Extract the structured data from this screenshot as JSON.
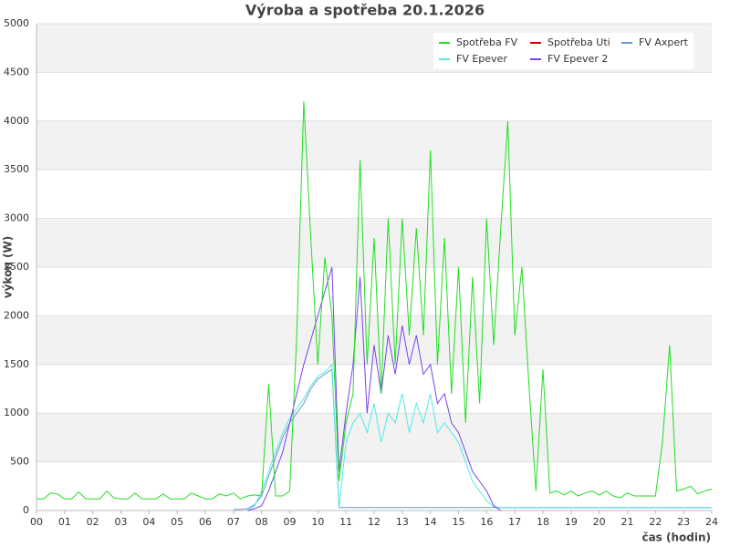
{
  "chart_data": {
    "type": "line",
    "title": "Výroba a spotřeba 20.1.2026",
    "x_label": "čas (hodin)",
    "y_label": "výkon (W)",
    "x": [
      0,
      0.25,
      0.5,
      0.75,
      1,
      1.25,
      1.5,
      1.75,
      2,
      2.25,
      2.5,
      2.75,
      3,
      3.25,
      3.5,
      3.75,
      4,
      4.25,
      4.5,
      4.75,
      5,
      5.25,
      5.5,
      5.75,
      6,
      6.25,
      6.5,
      6.75,
      7,
      7.25,
      7.5,
      7.75,
      8,
      8.25,
      8.5,
      8.75,
      9,
      9.25,
      9.5,
      9.75,
      10,
      10.25,
      10.5,
      10.75,
      11,
      11.25,
      11.5,
      11.75,
      12,
      12.25,
      12.5,
      12.75,
      13,
      13.25,
      13.5,
      13.75,
      14,
      14.25,
      14.5,
      14.75,
      15,
      15.25,
      15.5,
      15.75,
      16,
      16.25,
      16.5,
      16.75,
      17,
      17.25,
      17.5,
      17.75,
      18,
      18.25,
      18.5,
      18.75,
      19,
      19.25,
      19.5,
      19.75,
      20,
      20.25,
      20.5,
      20.75,
      21,
      21.25,
      21.5,
      21.75,
      22,
      22.25,
      22.5,
      22.75,
      23,
      23.25,
      23.5,
      23.75,
      24
    ],
    "series": [
      {
        "name": "Spotřeba FV",
        "color": "#22dd22",
        "values": [
          120,
          120,
          180,
          170,
          120,
          120,
          190,
          120,
          120,
          120,
          200,
          130,
          120,
          120,
          180,
          120,
          120,
          120,
          170,
          120,
          120,
          120,
          180,
          150,
          120,
          120,
          170,
          150,
          180,
          120,
          150,
          160,
          150,
          1300,
          150,
          150,
          200,
          1800,
          4200,
          2800,
          1500,
          2600,
          2000,
          300,
          900,
          1200,
          3600,
          1500,
          2800,
          1200,
          3000,
          1500,
          3000,
          1800,
          2900,
          1800,
          3700,
          1500,
          2800,
          1200,
          2500,
          900,
          2400,
          1100,
          3000,
          1700,
          2900,
          4000,
          1800,
          2500,
          1300,
          200,
          1450,
          180,
          200,
          160,
          200,
          150,
          180,
          200,
          160,
          200,
          150,
          130,
          180,
          150,
          150,
          150,
          150,
          700,
          1700,
          200,
          220,
          250,
          170,
          200,
          220
        ]
      },
      {
        "name": "Spotřeba Uti",
        "color": "#cc0000",
        "values": [
          null,
          null,
          null,
          null,
          null,
          null,
          null,
          null,
          null,
          null,
          null,
          null,
          null,
          null,
          null,
          null,
          null,
          null,
          null,
          null,
          null,
          null,
          null,
          null,
          null,
          null,
          null,
          null,
          null,
          null,
          null,
          null,
          null,
          null,
          null,
          null,
          null,
          null,
          null,
          null,
          null,
          null,
          null,
          null,
          null,
          null,
          null,
          null,
          null,
          null,
          null,
          null,
          null,
          null,
          null,
          null,
          null,
          null,
          null,
          null,
          null,
          null,
          null,
          null,
          null,
          null,
          null,
          null,
          null,
          null,
          null,
          null,
          null,
          null,
          null,
          null,
          null,
          null,
          null,
          null,
          null,
          null,
          null,
          null,
          null,
          null,
          null,
          null,
          null,
          null,
          null,
          null,
          null,
          null,
          null,
          null,
          null
        ]
      },
      {
        "name": "FV Axpert",
        "color": "#6699cc",
        "values": [
          null,
          null,
          null,
          null,
          null,
          null,
          null,
          null,
          null,
          null,
          null,
          null,
          null,
          null,
          null,
          null,
          null,
          null,
          null,
          null,
          null,
          null,
          null,
          null,
          null,
          null,
          null,
          null,
          10,
          10,
          20,
          60,
          150,
          350,
          550,
          750,
          900,
          1000,
          1100,
          1250,
          1350,
          1400,
          1450,
          30,
          30,
          30,
          30,
          30,
          30,
          30,
          30,
          30,
          30,
          30,
          30,
          30,
          30,
          30,
          30,
          30,
          30,
          30,
          30,
          30,
          30,
          30,
          30,
          30,
          30,
          30,
          30,
          30,
          30,
          30,
          30,
          30,
          30,
          30,
          30,
          30,
          30,
          30,
          30,
          30,
          30,
          30,
          30,
          30,
          30,
          30,
          30,
          30,
          30,
          30,
          30,
          30,
          30
        ]
      },
      {
        "name": "FV Epever",
        "color": "#55e8e8",
        "values": [
          null,
          null,
          null,
          null,
          null,
          null,
          null,
          null,
          null,
          null,
          null,
          null,
          null,
          null,
          null,
          null,
          null,
          null,
          null,
          null,
          null,
          null,
          null,
          null,
          null,
          null,
          null,
          null,
          null,
          null,
          0,
          50,
          200,
          400,
          600,
          800,
          950,
          1050,
          1150,
          1280,
          1380,
          1420,
          1500,
          30,
          700,
          900,
          1000,
          800,
          1100,
          700,
          1000,
          900,
          1200,
          800,
          1100,
          900,
          1200,
          800,
          900,
          800,
          700,
          500,
          300,
          200,
          100,
          40,
          30,
          30,
          30,
          30,
          30,
          30,
          30,
          30,
          30,
          30,
          30,
          30,
          30,
          30,
          30,
          30,
          30,
          30,
          30,
          30,
          30,
          30,
          30,
          30,
          30,
          30,
          30,
          30,
          30,
          30,
          30
        ]
      },
      {
        "name": "FV Epever 2",
        "color": "#7744ee",
        "values": [
          null,
          null,
          null,
          null,
          null,
          null,
          null,
          null,
          null,
          null,
          null,
          null,
          null,
          null,
          null,
          null,
          null,
          null,
          null,
          null,
          null,
          null,
          null,
          null,
          null,
          null,
          null,
          null,
          null,
          null,
          0,
          20,
          50,
          200,
          400,
          600,
          900,
          1200,
          1500,
          1750,
          2000,
          2250,
          2500,
          400,
          1000,
          1500,
          2400,
          1000,
          1700,
          1200,
          1800,
          1400,
          1900,
          1500,
          1800,
          1400,
          1500,
          1100,
          1200,
          900,
          800,
          600,
          400,
          300,
          200,
          50,
          0,
          null,
          null,
          null,
          null,
          null,
          null,
          null,
          null,
          null,
          null,
          null,
          null,
          null,
          null,
          null,
          null,
          null,
          null,
          null,
          null,
          null,
          null,
          null,
          null,
          null,
          null,
          null,
          null,
          null,
          null
        ]
      }
    ],
    "xlim": [
      0,
      24
    ],
    "xticks": [
      {
        "value": 0,
        "label": "00"
      },
      {
        "value": 1,
        "label": "01"
      },
      {
        "value": 2,
        "label": "02"
      },
      {
        "value": 3,
        "label": "03"
      },
      {
        "value": 4,
        "label": "04"
      },
      {
        "value": 5,
        "label": "05"
      },
      {
        "value": 6,
        "label": "06"
      },
      {
        "value": 7,
        "label": "07"
      },
      {
        "value": 8,
        "label": "08"
      },
      {
        "value": 9,
        "label": "09"
      },
      {
        "value": 10,
        "label": "10"
      },
      {
        "value": 11,
        "label": "11"
      },
      {
        "value": 12,
        "label": "12"
      },
      {
        "value": 13,
        "label": "13"
      },
      {
        "value": 14,
        "label": "14"
      },
      {
        "value": 15,
        "label": "15"
      },
      {
        "value": 16,
        "label": "16"
      },
      {
        "value": 17,
        "label": "17"
      },
      {
        "value": 18,
        "label": "18"
      },
      {
        "value": 19,
        "label": "19"
      },
      {
        "value": 20,
        "label": "20"
      },
      {
        "value": 21,
        "label": "21"
      },
      {
        "value": 22,
        "label": "22"
      },
      {
        "value": 23,
        "label": "23"
      },
      {
        "value": 24,
        "label": "24"
      }
    ],
    "ylim": [
      0,
      5000
    ],
    "yticks": [
      0,
      500,
      1000,
      1500,
      2000,
      2500,
      3000,
      3500,
      4000,
      4500,
      5000
    ],
    "grid": true,
    "legend": "top-right"
  }
}
